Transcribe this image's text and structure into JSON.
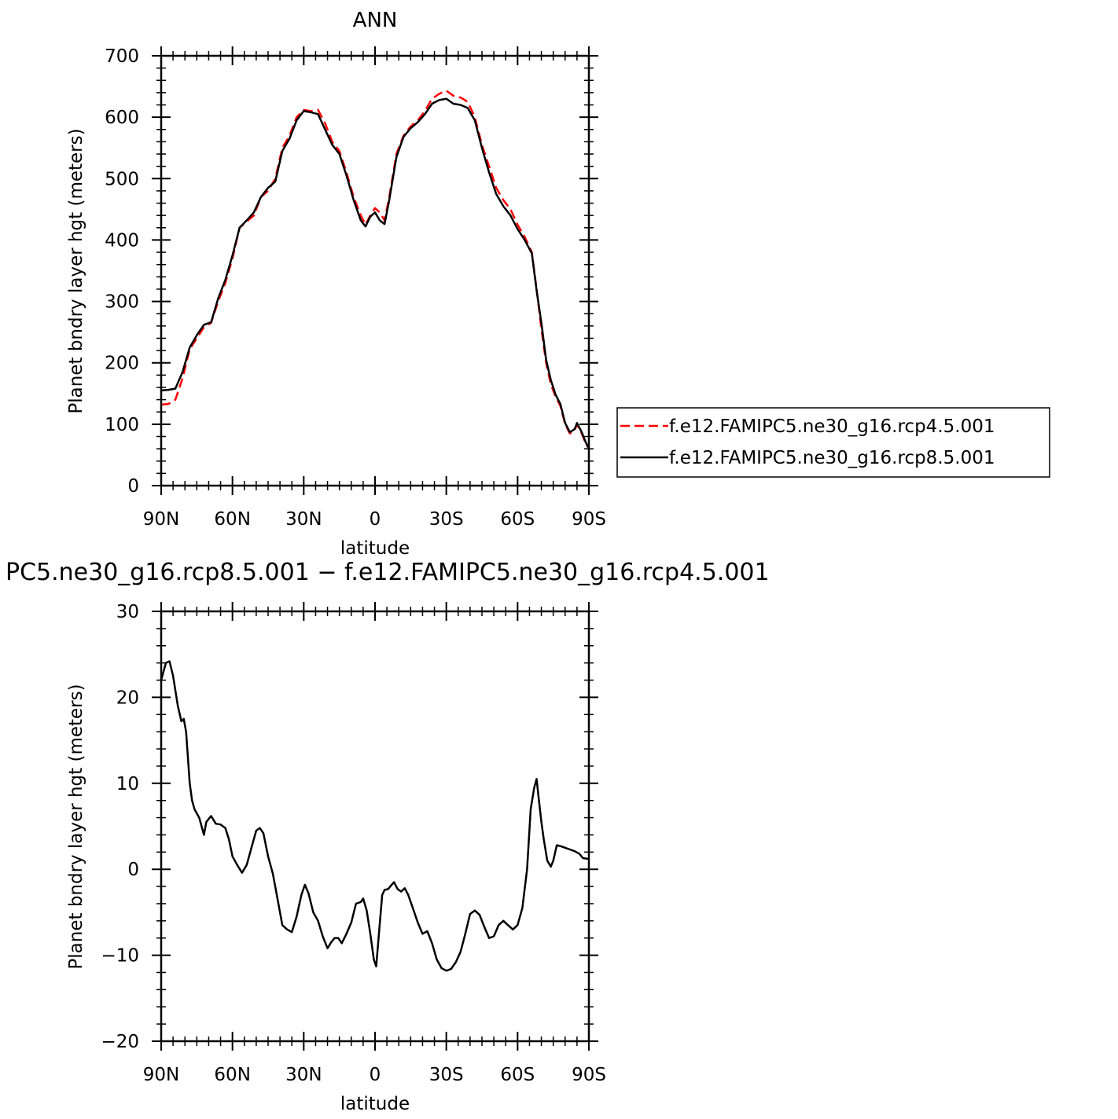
{
  "chart_data": [
    {
      "type": "line",
      "title": "ANN",
      "xlabel": "latitude",
      "ylabel": "Planet bndry layer hgt (meters)",
      "xlim": [
        90,
        -90
      ],
      "ylim": [
        0,
        700
      ],
      "x_ticks": [
        90,
        60,
        30,
        0,
        -30,
        -60,
        -90
      ],
      "x_tick_labels": [
        "90N",
        "60N",
        "30N",
        "0",
        "30S",
        "60S",
        "90S"
      ],
      "y_ticks": [
        0,
        100,
        200,
        300,
        400,
        500,
        600,
        700
      ],
      "y_tick_labels": [
        "0",
        "100",
        "200",
        "300",
        "400",
        "500",
        "600",
        "700"
      ],
      "grid": false,
      "legend_position": "right",
      "series": [
        {
          "name": "f.e12.FAMIPC5.ne30_g16.rcp4.5.001",
          "color": "#ff0000",
          "dash": "dashed",
          "points": [
            [
              90,
              132
            ],
            [
              87,
              133
            ],
            [
              84,
              140
            ],
            [
              81,
              175
            ],
            [
              78,
              222
            ],
            [
              75,
              240
            ],
            [
              72,
              258
            ],
            [
              69,
              265
            ],
            [
              66,
              300
            ],
            [
              63,
              330
            ],
            [
              60,
              370
            ],
            [
              57,
              420
            ],
            [
              54,
              430
            ],
            [
              51,
              440
            ],
            [
              48,
              470
            ],
            [
              45,
              480
            ],
            [
              42,
              500
            ],
            [
              39,
              550
            ],
            [
              36,
              570
            ],
            [
              33,
              600
            ],
            [
              30,
              612
            ],
            [
              27,
              610
            ],
            [
              24,
              612
            ],
            [
              21,
              590
            ],
            [
              18,
              560
            ],
            [
              15,
              545
            ],
            [
              12,
              510
            ],
            [
              9,
              470
            ],
            [
              6,
              440
            ],
            [
              4,
              425
            ],
            [
              2,
              440
            ],
            [
              0,
              452
            ],
            [
              -2,
              445
            ],
            [
              -4,
              432
            ],
            [
              -6,
              470
            ],
            [
              -9,
              540
            ],
            [
              -12,
              570
            ],
            [
              -15,
              585
            ],
            [
              -18,
              595
            ],
            [
              -21,
              610
            ],
            [
              -24,
              630
            ],
            [
              -27,
              638
            ],
            [
              -30,
              643
            ],
            [
              -33,
              635
            ],
            [
              -36,
              632
            ],
            [
              -39,
              625
            ],
            [
              -42,
              600
            ],
            [
              -45,
              555
            ],
            [
              -48,
              520
            ],
            [
              -51,
              485
            ],
            [
              -54,
              465
            ],
            [
              -57,
              450
            ],
            [
              -60,
              425
            ],
            [
              -63,
              405
            ],
            [
              -66,
              380
            ],
            [
              -68,
              320
            ],
            [
              -70,
              255
            ],
            [
              -72,
              200
            ],
            [
              -74,
              165
            ],
            [
              -76,
              145
            ],
            [
              -78,
              130
            ],
            [
              -80,
              100
            ],
            [
              -82,
              85
            ],
            [
              -84,
              90
            ],
            [
              -85,
              100
            ],
            [
              -87,
              85
            ],
            [
              -88.5,
              70
            ],
            [
              -90,
              60
            ]
          ]
        },
        {
          "name": "f.e12.FAMIPC5.ne30_g16.rcp8.5.001",
          "color": "#000000",
          "dash": "solid",
          "points": [
            [
              90,
              155
            ],
            [
              87,
              156
            ],
            [
              84,
              158
            ],
            [
              81,
              185
            ],
            [
              78,
              225
            ],
            [
              75,
              245
            ],
            [
              72,
              262
            ],
            [
              69,
              266
            ],
            [
              66,
              305
            ],
            [
              63,
              335
            ],
            [
              60,
              375
            ],
            [
              57,
              420
            ],
            [
              54,
              432
            ],
            [
              51,
              445
            ],
            [
              48,
              470
            ],
            [
              45,
              485
            ],
            [
              42,
              495
            ],
            [
              39,
              545
            ],
            [
              36,
              565
            ],
            [
              33,
              595
            ],
            [
              30,
              610
            ],
            [
              27,
              608
            ],
            [
              24,
              605
            ],
            [
              21,
              580
            ],
            [
              18,
              555
            ],
            [
              15,
              540
            ],
            [
              12,
              505
            ],
            [
              9,
              465
            ],
            [
              6,
              432
            ],
            [
              4,
              422
            ],
            [
              2,
              438
            ],
            [
              0,
              445
            ],
            [
              -2,
              432
            ],
            [
              -4,
              426
            ],
            [
              -6,
              465
            ],
            [
              -9,
              535
            ],
            [
              -12,
              568
            ],
            [
              -15,
              582
            ],
            [
              -18,
              592
            ],
            [
              -21,
              605
            ],
            [
              -24,
              622
            ],
            [
              -27,
              628
            ],
            [
              -30,
              630
            ],
            [
              -33,
              622
            ],
            [
              -36,
              620
            ],
            [
              -39,
              615
            ],
            [
              -42,
              595
            ],
            [
              -45,
              550
            ],
            [
              -48,
              510
            ],
            [
              -51,
              475
            ],
            [
              -54,
              455
            ],
            [
              -57,
              440
            ],
            [
              -60,
              418
            ],
            [
              -63,
              400
            ],
            [
              -66,
              378
            ],
            [
              -68,
              318
            ],
            [
              -70,
              265
            ],
            [
              -72,
              205
            ],
            [
              -74,
              172
            ],
            [
              -76,
              148
            ],
            [
              -78,
              133
            ],
            [
              -80,
              102
            ],
            [
              -82,
              87
            ],
            [
              -84,
              92
            ],
            [
              -85,
              102
            ],
            [
              -87,
              87
            ],
            [
              -88.5,
              72
            ],
            [
              -90,
              60
            ]
          ]
        }
      ]
    },
    {
      "type": "line",
      "title": "PC5.ne30_g16.rcp8.5.001 − f.e12.FAMIPC5.ne30_g16.rcp4.5.001",
      "xlabel": "latitude",
      "ylabel": "Planet bndry layer hgt (meters)",
      "xlim": [
        90,
        -90
      ],
      "ylim": [
        -20,
        30
      ],
      "x_ticks": [
        90,
        60,
        30,
        0,
        -30,
        -60,
        -90
      ],
      "x_tick_labels": [
        "90N",
        "60N",
        "30N",
        "0",
        "30S",
        "60S",
        "90S"
      ],
      "y_ticks": [
        -20,
        -10,
        0,
        10,
        20,
        30
      ],
      "y_tick_labels": [
        "−20",
        "−10",
        "0",
        "10",
        "20",
        "30"
      ],
      "grid": false,
      "series": [
        {
          "color": "#000000",
          "dash": "solid",
          "points": [
            [
              90,
              22
            ],
            [
              88,
              24
            ],
            [
              86.5,
              24.2
            ],
            [
              85,
              22.5
            ],
            [
              83,
              19
            ],
            [
              81.5,
              17.2
            ],
            [
              80.5,
              17.5
            ],
            [
              79.5,
              16
            ],
            [
              78,
              10
            ],
            [
              77,
              8
            ],
            [
              76,
              7
            ],
            [
              74,
              6
            ],
            [
              72,
              4
            ],
            [
              71,
              5.5
            ],
            [
              69,
              6.2
            ],
            [
              67,
              5.3
            ],
            [
              65,
              5.2
            ],
            [
              63,
              4.8
            ],
            [
              61.5,
              3.5
            ],
            [
              60,
              1.5
            ],
            [
              58,
              0.5
            ],
            [
              56,
              -0.4
            ],
            [
              54,
              0.5
            ],
            [
              52,
              2.5
            ],
            [
              50,
              4.5
            ],
            [
              48.5,
              4.8
            ],
            [
              47,
              4.2
            ],
            [
              45,
              1.5
            ],
            [
              43,
              -0.5
            ],
            [
              41,
              -3.5
            ],
            [
              39,
              -6.5
            ],
            [
              37,
              -7
            ],
            [
              35,
              -7.3
            ],
            [
              33,
              -5.5
            ],
            [
              31,
              -3
            ],
            [
              29.5,
              -1.8
            ],
            [
              28,
              -2.8
            ],
            [
              26,
              -5
            ],
            [
              24,
              -6
            ],
            [
              22,
              -7.8
            ],
            [
              20,
              -9.2
            ],
            [
              18.5,
              -8.5
            ],
            [
              17,
              -8
            ],
            [
              15.5,
              -8
            ],
            [
              14,
              -8.6
            ],
            [
              12,
              -7.5
            ],
            [
              10,
              -6.2
            ],
            [
              8,
              -4
            ],
            [
              6,
              -3.8
            ],
            [
              5,
              -3.4
            ],
            [
              3.5,
              -4.8
            ],
            [
              2,
              -7.5
            ],
            [
              0.5,
              -10.5
            ],
            [
              -0.5,
              -11.3
            ],
            [
              -1.5,
              -8
            ],
            [
              -3,
              -3
            ],
            [
              -4,
              -2.4
            ],
            [
              -5.5,
              -2.3
            ],
            [
              -7,
              -1.8
            ],
            [
              -8,
              -1.5
            ],
            [
              -9.5,
              -2.3
            ],
            [
              -11,
              -2.6
            ],
            [
              -12.5,
              -2.2
            ],
            [
              -14,
              -3
            ],
            [
              -16,
              -4.6
            ],
            [
              -18,
              -6.2
            ],
            [
              -20,
              -7.5
            ],
            [
              -22,
              -7.2
            ],
            [
              -24,
              -8.6
            ],
            [
              -26,
              -10.5
            ],
            [
              -28,
              -11.5
            ],
            [
              -30,
              -11.8
            ],
            [
              -32,
              -11.6
            ],
            [
              -34,
              -10.8
            ],
            [
              -36,
              -9.6
            ],
            [
              -38,
              -7.5
            ],
            [
              -40,
              -5.2
            ],
            [
              -42,
              -4.8
            ],
            [
              -44,
              -5.3
            ],
            [
              -46,
              -6.7
            ],
            [
              -48,
              -8
            ],
            [
              -50,
              -7.8
            ],
            [
              -52,
              -6.5
            ],
            [
              -54,
              -6
            ],
            [
              -56,
              -6.5
            ],
            [
              -58,
              -7
            ],
            [
              -60,
              -6.5
            ],
            [
              -62,
              -4.5
            ],
            [
              -64,
              0
            ],
            [
              -65.5,
              7
            ],
            [
              -67,
              9.5
            ],
            [
              -68,
              10.5
            ],
            [
              -69,
              8
            ],
            [
              -70,
              5.5
            ],
            [
              -71,
              3.5
            ],
            [
              -72.5,
              1
            ],
            [
              -74,
              0.3
            ],
            [
              -75,
              1
            ],
            [
              -76.5,
              2.8
            ],
            [
              -78,
              2.7
            ],
            [
              -80,
              2.5
            ],
            [
              -82,
              2.3
            ],
            [
              -84,
              2.1
            ],
            [
              -86,
              1.8
            ],
            [
              -87.5,
              1.3
            ],
            [
              -90,
              1.2
            ]
          ]
        }
      ]
    }
  ]
}
